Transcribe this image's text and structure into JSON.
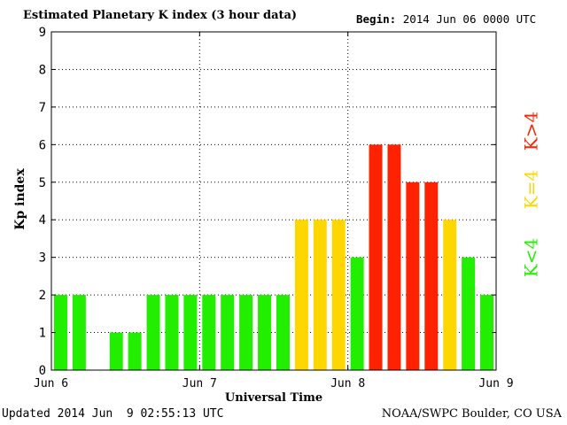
{
  "header": {
    "title": "Estimated Planetary K index (3 hour data)",
    "begin_label": "Begin:",
    "begin_value": "2014 Jun 06 0000 UTC"
  },
  "footer": {
    "updated_label": "Updated",
    "updated_value": "2014 Jun  9 02:55:13 UTC",
    "source": "NOAA/SWPC Boulder, CO USA"
  },
  "legend": [
    {
      "label": "K>4",
      "color": "#ff2200"
    },
    {
      "label": "K=4",
      "color": "#ffd700"
    },
    {
      "label": "K<4",
      "color": "#22ee00"
    }
  ],
  "chart_data": {
    "type": "bar",
    "title": "Estimated Planetary K index (3 hour data)",
    "xlabel": "Universal Time",
    "ylabel": "Kp index",
    "ylim": [
      0,
      9
    ],
    "yticks": [
      0,
      1,
      2,
      3,
      4,
      5,
      6,
      7,
      8,
      9
    ],
    "x_tick_labels": [
      "Jun 6",
      "Jun 7",
      "Jun 8",
      "Jun 9"
    ],
    "grid": true,
    "interval_hours": 3,
    "categories": [
      "Jun 6 00",
      "Jun 6 03",
      "Jun 6 06",
      "Jun 6 09",
      "Jun 6 12",
      "Jun 6 15",
      "Jun 6 18",
      "Jun 6 21",
      "Jun 7 00",
      "Jun 7 03",
      "Jun 7 06",
      "Jun 7 09",
      "Jun 7 12",
      "Jun 7 15",
      "Jun 7 18",
      "Jun 7 21",
      "Jun 8 00",
      "Jun 8 03",
      "Jun 8 06",
      "Jun 8 09",
      "Jun 8 12",
      "Jun 8 15",
      "Jun 8 18",
      "Jun 8 21"
    ],
    "values": [
      2,
      2,
      0,
      1,
      1,
      2,
      2,
      2,
      2,
      2,
      2,
      2,
      2,
      4,
      4,
      4,
      3,
      6,
      6,
      5,
      5,
      4,
      3,
      2
    ],
    "colors": {
      "below_4": "#22ee00",
      "equal_4": "#ffd700",
      "above_4": "#ff2200"
    }
  }
}
